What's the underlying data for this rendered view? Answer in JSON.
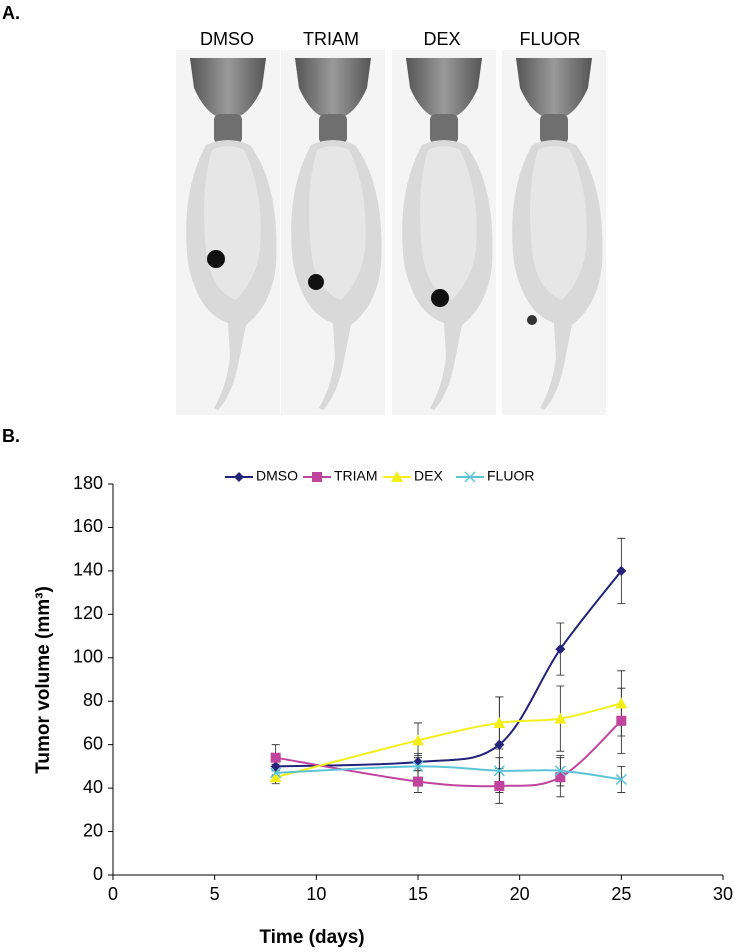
{
  "panel_a_label": "A.",
  "panel_b_label": "B.",
  "image_labels": [
    "DMSO",
    "TRIAM",
    "DEX",
    "FLUOR"
  ],
  "chart_data": {
    "type": "line",
    "x_label": "Time (days)",
    "y_label": "Tumor volume (mm³)",
    "x": [
      8,
      15,
      19,
      22,
      25
    ],
    "series": [
      {
        "name": "DMSO",
        "color": "#23237a",
        "marker": "diamond",
        "values": [
          50,
          52,
          60,
          104,
          140
        ],
        "errors": [
          4,
          4,
          22,
          12,
          15
        ]
      },
      {
        "name": "TRIAM",
        "color": "#c0449e",
        "marker": "square",
        "values": [
          54,
          43,
          41,
          45,
          71
        ],
        "errors": [
          6,
          5,
          8,
          9,
          15
        ]
      },
      {
        "name": "DEX",
        "color": "#f2ef1a",
        "marker": "triangle",
        "values": [
          45,
          62,
          70,
          72,
          79
        ],
        "errors": [
          3,
          8,
          12,
          15,
          15
        ]
      },
      {
        "name": "FLUOR",
        "color": "#5cc4d6",
        "marker": "x",
        "values": [
          47,
          50,
          48,
          48,
          44
        ],
        "errors": [
          4,
          5,
          6,
          7,
          6
        ]
      }
    ],
    "xlim": [
      0,
      30
    ],
    "xticks": [
      0,
      5,
      10,
      15,
      20,
      25,
      30
    ],
    "ylim": [
      0,
      180
    ],
    "yticks": [
      0,
      20,
      40,
      60,
      80,
      100,
      120,
      140,
      160,
      180
    ],
    "legend": "top",
    "smooth": true
  }
}
